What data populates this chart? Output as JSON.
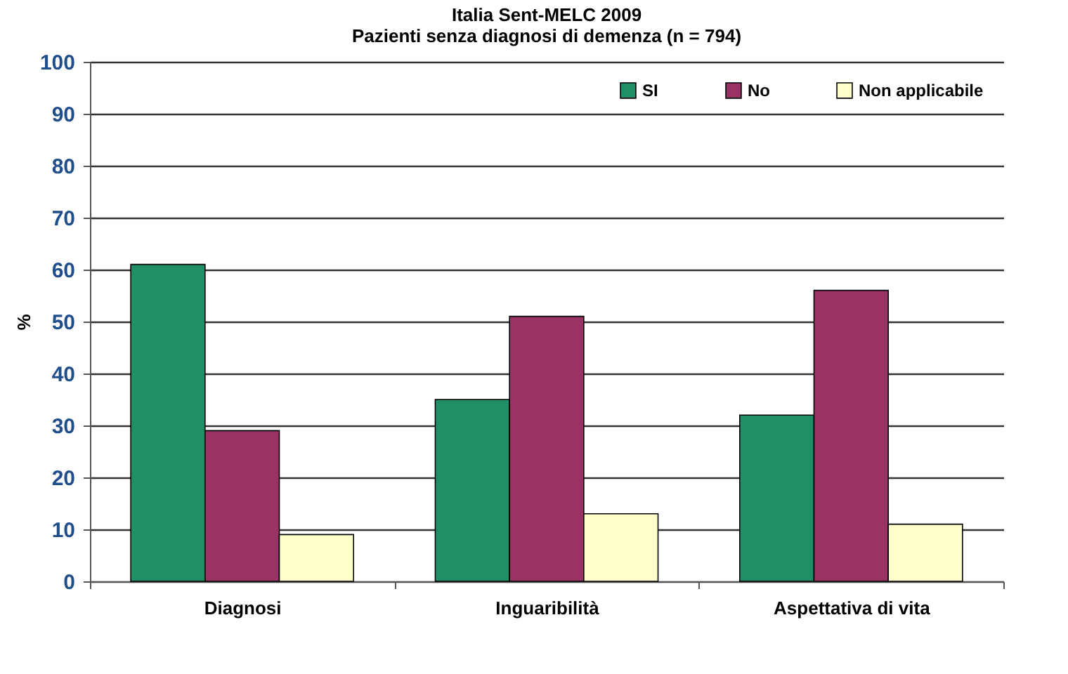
{
  "chart_data": {
    "type": "bar",
    "title": "Italia Sent-MELC 2009",
    "subtitle": "Pazienti senza diagnosi di demenza (n = 794)",
    "ylabel": "%",
    "categories": [
      "Diagnosi",
      "Inguaribilità",
      "Aspettativa di vita"
    ],
    "series": [
      {
        "name": "SI",
        "color": "#1f8f66",
        "values": [
          61,
          35,
          32
        ]
      },
      {
        "name": "No",
        "color": "#993366",
        "values": [
          29,
          51,
          56
        ]
      },
      {
        "name": "Non applicabile",
        "color": "#ffffcc",
        "values": [
          9,
          13,
          11
        ]
      }
    ],
    "ylim": [
      0,
      100
    ],
    "yticks": [
      0,
      10,
      20,
      30,
      40,
      50,
      60,
      70,
      80,
      90,
      100
    ],
    "grid": "y",
    "legend": "top right"
  }
}
